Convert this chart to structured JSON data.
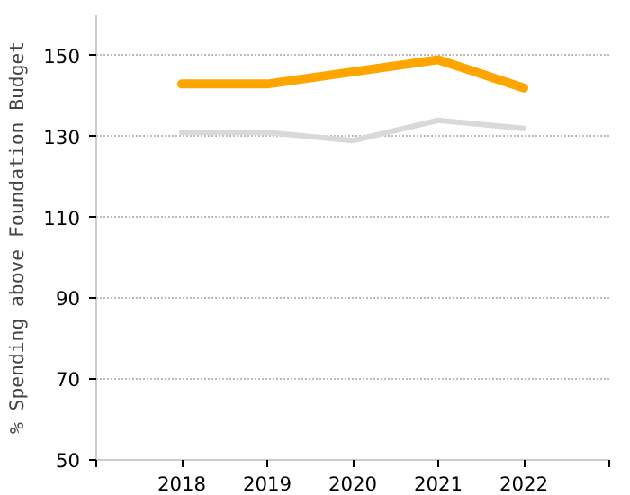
{
  "chart_data": {
    "type": "line",
    "ylabel": "% Spending above Foundation Budget",
    "x": [
      2018,
      2019,
      2020,
      2021,
      2022
    ],
    "series": [
      {
        "color": "#d9d9d9",
        "values": [
          131,
          131,
          129,
          134,
          132
        ]
      },
      {
        "color": "#ffa500",
        "values": [
          143,
          143,
          146,
          149,
          142
        ]
      }
    ],
    "xlim": [
      2017,
      2023
    ],
    "xticks": [
      {
        "value": 2017,
        "label": null
      },
      2018,
      2019,
      2020,
      2021,
      2022,
      {
        "value": 2023,
        "label": null
      }
    ],
    "ylim": [
      50,
      160
    ],
    "yticks": [
      50,
      70,
      90,
      110,
      130,
      150
    ],
    "grid": "y"
  }
}
